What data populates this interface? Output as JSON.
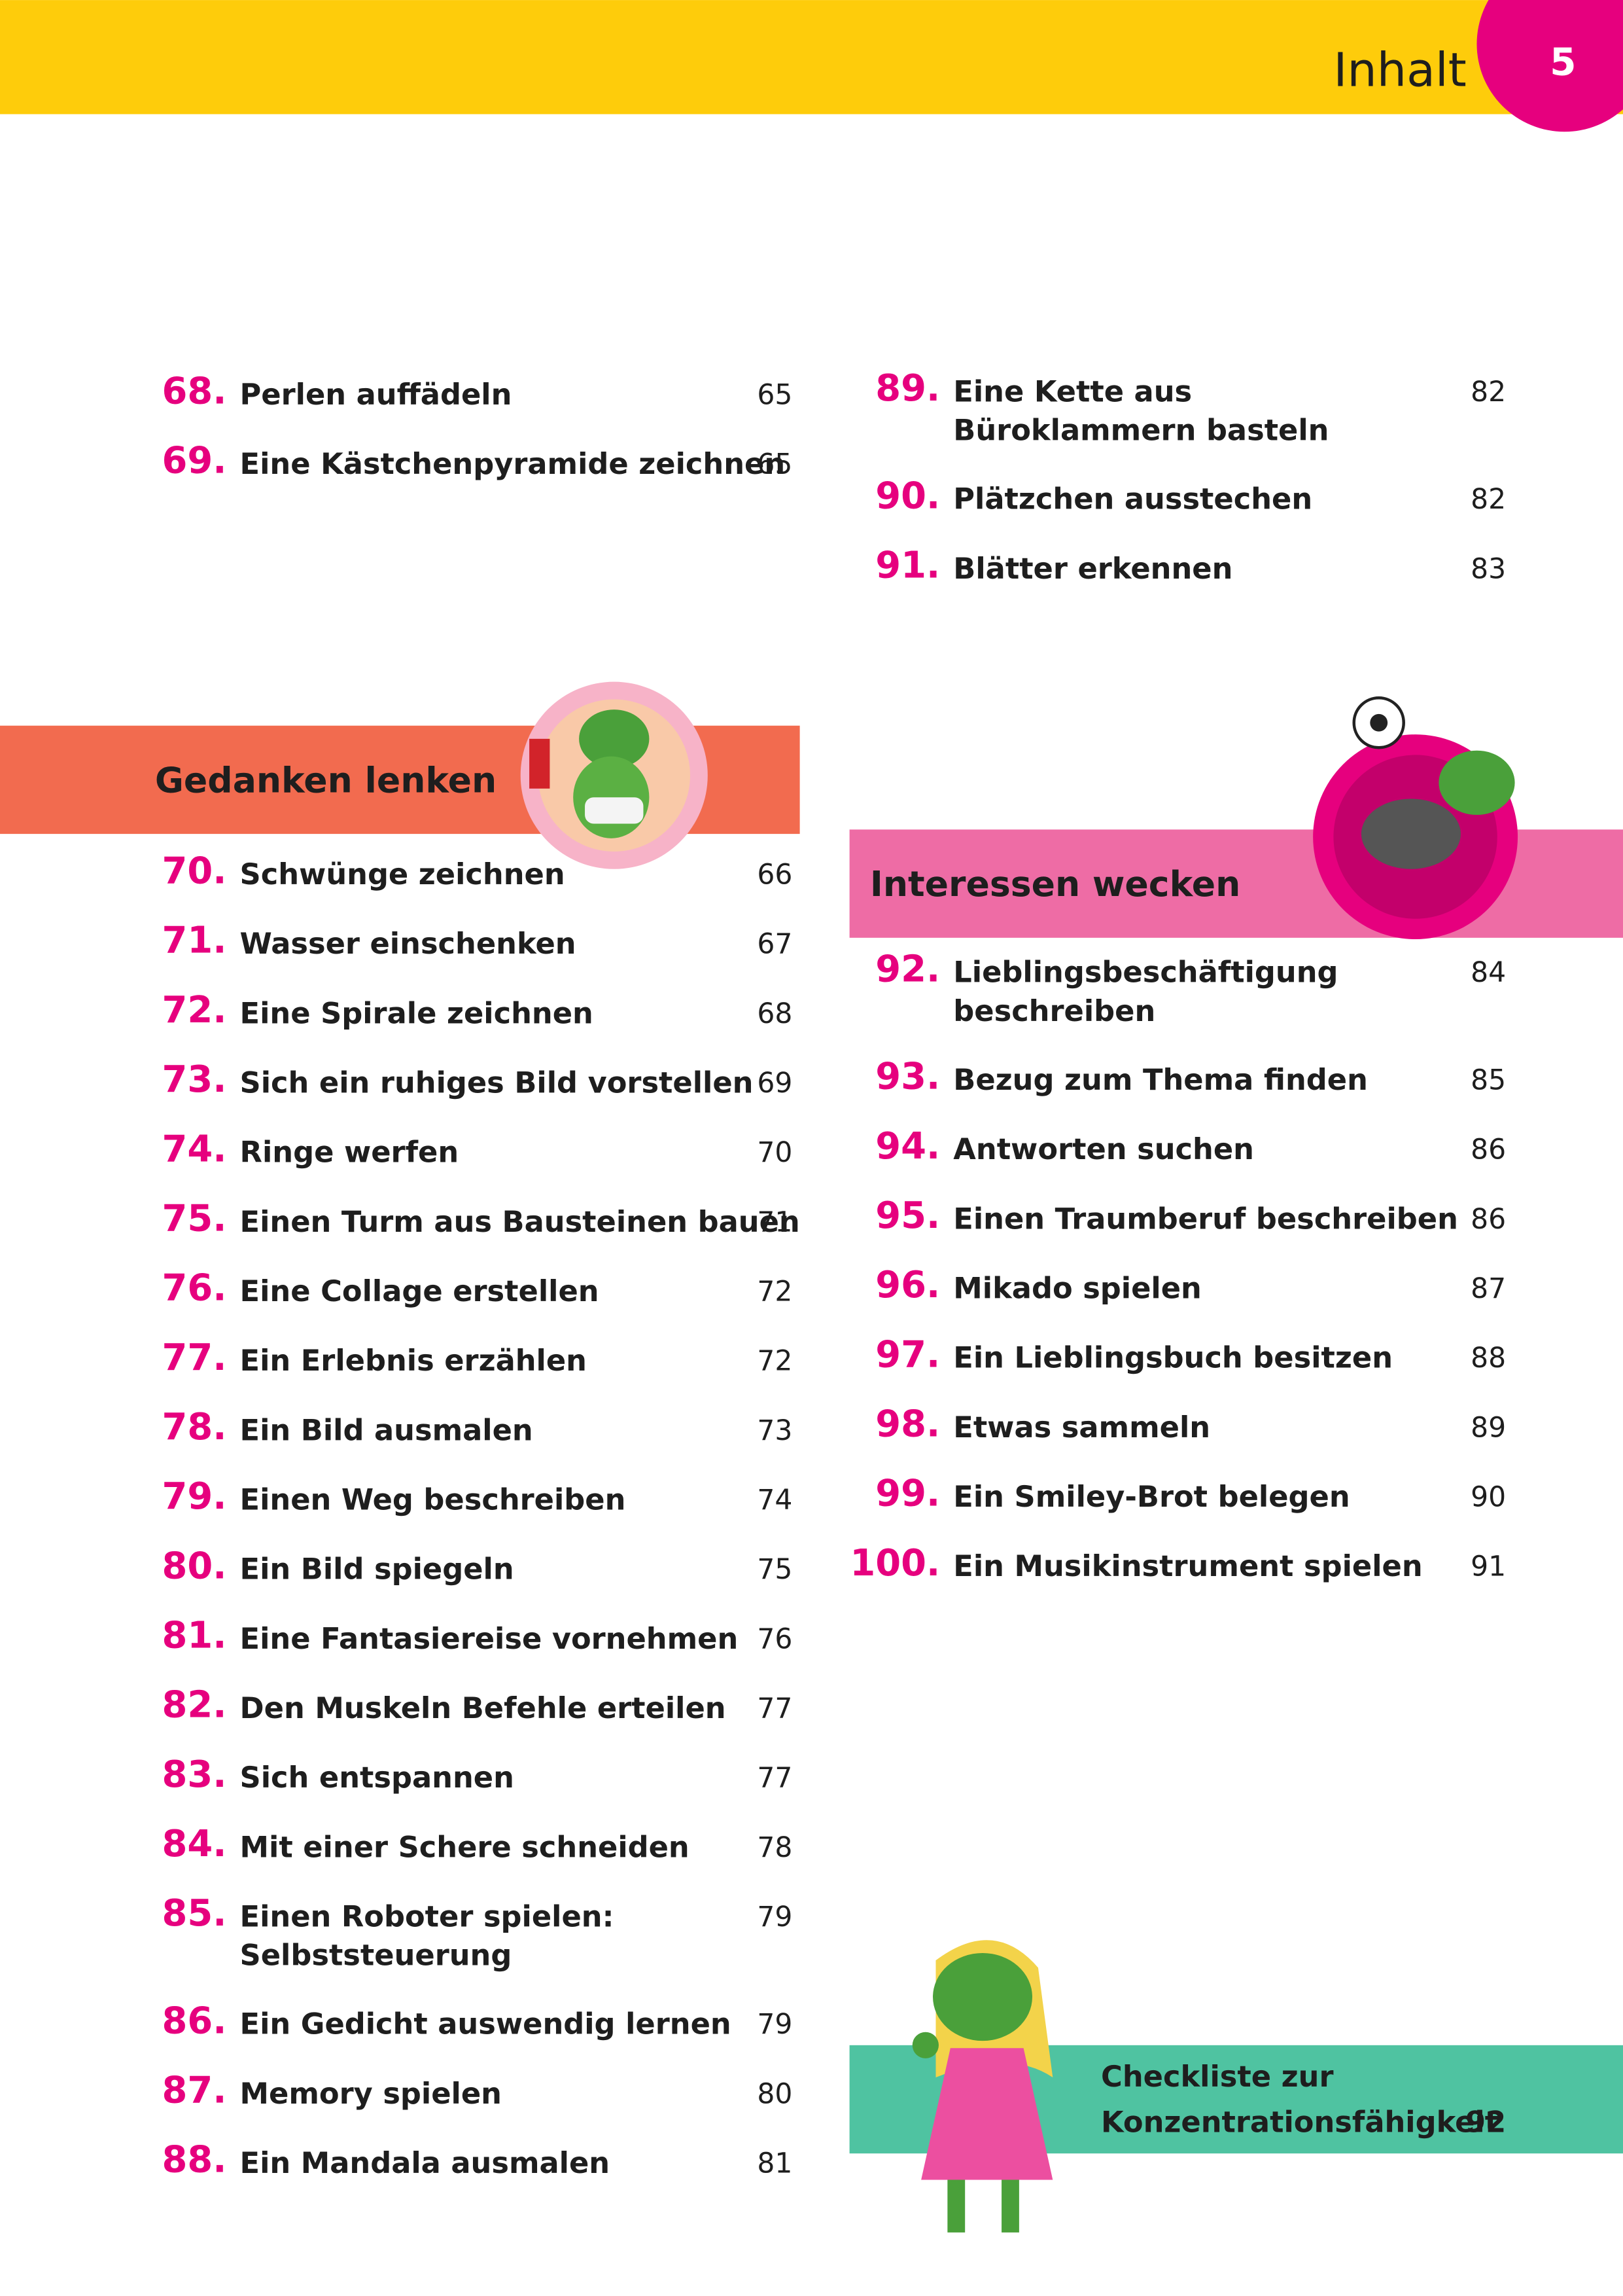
{
  "header": {
    "title": "Inhalt",
    "page_number": "5"
  },
  "top_left": {
    "items": [
      {
        "number": "68.",
        "lines": [
          "Perlen auffädeln"
        ],
        "page": 65
      },
      {
        "number": "69.",
        "lines": [
          "Eine Kästchenpyramide zeichnen"
        ],
        "page": 65
      }
    ]
  },
  "top_right": {
    "items": [
      {
        "number": "89.",
        "lines": [
          "Eine Kette aus",
          "Büroklammern basteln"
        ],
        "page": 82
      },
      {
        "number": "90.",
        "lines": [
          "Plätzchen ausstechen"
        ],
        "page": 82
      },
      {
        "number": "91.",
        "lines": [
          "Blätter erkennen"
        ],
        "page": 83
      }
    ]
  },
  "gedanken": {
    "heading": "Gedanken lenken",
    "items": [
      {
        "number": "70.",
        "lines": [
          "Schwünge zeichnen"
        ],
        "page": 66
      },
      {
        "number": "71.",
        "lines": [
          "Wasser einschenken"
        ],
        "page": 67
      },
      {
        "number": "72.",
        "lines": [
          "Eine Spirale zeichnen"
        ],
        "page": 68
      },
      {
        "number": "73.",
        "lines": [
          "Sich ein ruhiges Bild vorstellen"
        ],
        "page": 69
      },
      {
        "number": "74.",
        "lines": [
          "Ringe werfen"
        ],
        "page": 70
      },
      {
        "number": "75.",
        "lines": [
          "Einen Turm aus Bausteinen bauen"
        ],
        "page": 71
      },
      {
        "number": "76.",
        "lines": [
          "Eine Collage erstellen"
        ],
        "page": 72
      },
      {
        "number": "77.",
        "lines": [
          "Ein Erlebnis erzählen"
        ],
        "page": 72
      },
      {
        "number": "78.",
        "lines": [
          "Ein Bild ausmalen"
        ],
        "page": 73
      },
      {
        "number": "79.",
        "lines": [
          "Einen Weg beschreiben"
        ],
        "page": 74
      },
      {
        "number": "80.",
        "lines": [
          "Ein Bild spiegeln"
        ],
        "page": 75
      },
      {
        "number": "81.",
        "lines": [
          "Eine Fantasiereise vornehmen"
        ],
        "page": 76
      },
      {
        "number": "82.",
        "lines": [
          "Den Muskeln Befehle erteilen"
        ],
        "page": 77
      },
      {
        "number": "83.",
        "lines": [
          "Sich entspannen"
        ],
        "page": 77
      },
      {
        "number": "84.",
        "lines": [
          "Mit einer Schere schneiden"
        ],
        "page": 78
      },
      {
        "number": "85.",
        "lines": [
          "Einen Roboter spielen:",
          "Selbststeuerung"
        ],
        "page": 79
      },
      {
        "number": "86.",
        "lines": [
          "Ein Gedicht auswendig lernen"
        ],
        "page": 79
      },
      {
        "number": "87.",
        "lines": [
          "Memory spielen"
        ],
        "page": 80
      },
      {
        "number": "88.",
        "lines": [
          "Ein Mandala ausmalen"
        ],
        "page": 81
      }
    ]
  },
  "interessen": {
    "heading": "Interessen wecken",
    "items": [
      {
        "number": "92.",
        "lines": [
          "Lieblingsbeschäftigung",
          "beschreiben"
        ],
        "page": 84
      },
      {
        "number": "93.",
        "lines": [
          "Bezug zum Thema finden"
        ],
        "page": 85
      },
      {
        "number": "94.",
        "lines": [
          "Antworten suchen"
        ],
        "page": 86
      },
      {
        "number": "95.",
        "lines": [
          "Einen Traumberuf beschreiben"
        ],
        "page": 86
      },
      {
        "number": "96.",
        "lines": [
          "Mikado spielen"
        ],
        "page": 87
      },
      {
        "number": "97.",
        "lines": [
          "Ein Lieblingsbuch besitzen"
        ],
        "page": 88
      },
      {
        "number": "98.",
        "lines": [
          "Etwas sammeln"
        ],
        "page": 89
      },
      {
        "number": "99.",
        "lines": [
          "Ein Smiley-Brot belegen"
        ],
        "page": 90
      },
      {
        "number": "100.",
        "lines": [
          "Ein Musikinstrument spielen"
        ],
        "page": 91
      }
    ]
  },
  "checklist": {
    "lines": [
      "Checkliste zur",
      "Konzentrationsfähigkeit"
    ],
    "page": 92
  }
}
